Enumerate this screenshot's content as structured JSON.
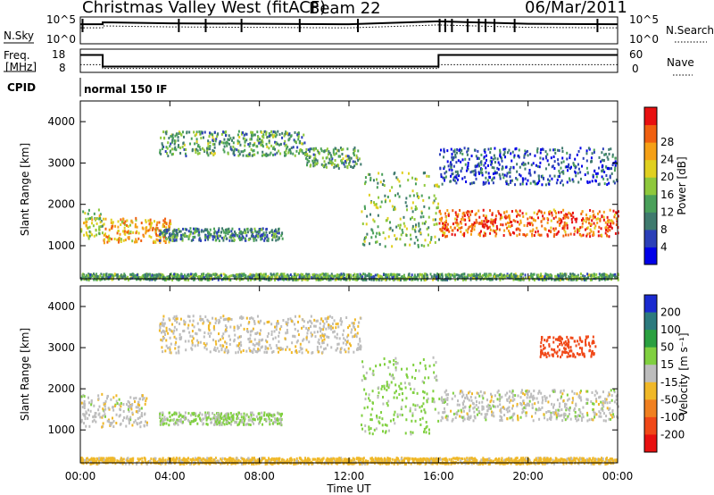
{
  "header": {
    "station": "Christmas Valley West (fitACF)",
    "beam": "Beam 22",
    "date": "06/Mar/2011"
  },
  "noise_panel": {
    "left_label": "N.Sky",
    "right_label": "N.Search",
    "left_ticks": [
      "10^5",
      "10^0"
    ],
    "right_ticks": [
      "10^5",
      "10^0"
    ]
  },
  "freq_panel": {
    "left_label_top": "Freq.",
    "left_label_bottom": "[MHz]",
    "right_label": "Nave",
    "left_ticks": [
      "18",
      "8"
    ],
    "right_ticks": [
      "60",
      "0"
    ]
  },
  "cpid_panel": {
    "label": "CPID",
    "mode": "normal 150 IF"
  },
  "axes": {
    "ylabel": "Slant Range [km]",
    "xlabel": "Time UT",
    "yticks": [
      "1000",
      "2000",
      "3000",
      "4000"
    ],
    "xticks": [
      "00:00",
      "04:00",
      "08:00",
      "12:00",
      "16:00",
      "20:00",
      "00:00"
    ]
  },
  "power_colorbar": {
    "title": "Power [dB]",
    "ticks": [
      "4",
      "8",
      "12",
      "16",
      "20",
      "24",
      "28"
    ],
    "colors": [
      "#0000e8",
      "#2b3fb8",
      "#3f7a6e",
      "#4aa05a",
      "#8ec83c",
      "#e0d020",
      "#f5a016",
      "#f06010",
      "#e81010"
    ]
  },
  "velocity_colorbar": {
    "title": "Velocity [m s⁻¹]",
    "ticks": [
      "200",
      "100",
      "50",
      "15",
      "-15",
      "-50",
      "-100",
      "-200"
    ],
    "colors": [
      "#1a2ad0",
      "#2c7a7e",
      "#2aa040",
      "#80d040",
      "#bdbdbd",
      "#f0b828",
      "#f08020",
      "#f04818",
      "#e81010"
    ]
  },
  "chart_data": [
    {
      "type": "line",
      "title": "N.Sky / N.Search",
      "x_range": [
        0,
        24
      ],
      "series": [
        {
          "x": [
            0,
            1,
            1,
            4,
            8,
            12,
            16,
            20,
            24
          ],
          "y": [
            4.0,
            4.0,
            4.4,
            4.2,
            4.1,
            4.0,
            4.6,
            4.1,
            4.0
          ]
        }
      ]
    },
    {
      "type": "line",
      "title": "Freq. / Nave",
      "x_range": [
        0,
        24
      ],
      "series": [
        {
          "x": [
            0,
            1,
            1,
            16,
            16,
            24
          ],
          "y": [
            15.5,
            15.5,
            10.5,
            10.5,
            15.5,
            15.5
          ]
        },
        {
          "x": [
            0,
            1,
            1,
            16,
            16,
            24
          ],
          "y": [
            20,
            20,
            10,
            10,
            20,
            20
          ]
        }
      ]
    },
    {
      "type": "heatmap",
      "quantity": "Power [dB]",
      "x_range": [
        0,
        24
      ],
      "y_range": [
        200,
        4500
      ],
      "echo_regions": [
        {
          "t": [
            0.0,
            1.0
          ],
          "r": [
            1200,
            1900
          ],
          "level": 16
        },
        {
          "t": [
            1.0,
            4.0
          ],
          "r": [
            1100,
            1700
          ],
          "level": 22
        },
        {
          "t": [
            3.5,
            9.0
          ],
          "r": [
            1150,
            1450
          ],
          "level": 10
        },
        {
          "t": [
            3.5,
            10.0
          ],
          "r": [
            3200,
            3800
          ],
          "level": 12
        },
        {
          "t": [
            10.0,
            12.5
          ],
          "r": [
            2900,
            3400
          ],
          "level": 12
        },
        {
          "t": [
            12.5,
            16.0
          ],
          "r": [
            1000,
            2800
          ],
          "level": 14
        },
        {
          "t": [
            16.0,
            24.0
          ],
          "r": [
            1250,
            1900
          ],
          "level": 26
        },
        {
          "t": [
            16.0,
            24.0
          ],
          "r": [
            2500,
            3400
          ],
          "level": 6
        },
        {
          "t": [
            0.0,
            24.0
          ],
          "r": [
            200,
            350
          ],
          "level": 12
        }
      ]
    },
    {
      "type": "heatmap",
      "quantity": "Velocity [m s⁻¹]",
      "x_range": [
        0,
        24
      ],
      "y_range": [
        200,
        4500
      ],
      "echo_regions": [
        {
          "t": [
            0.0,
            3.0
          ],
          "r": [
            1100,
            1900
          ],
          "v": 0
        },
        {
          "t": [
            3.5,
            9.0
          ],
          "r": [
            1150,
            1450
          ],
          "v": 20
        },
        {
          "t": [
            3.5,
            12.5
          ],
          "r": [
            2900,
            3800
          ],
          "v": -5
        },
        {
          "t": [
            12.5,
            16.0
          ],
          "r": [
            900,
            2800
          ],
          "v": 25
        },
        {
          "t": [
            16.0,
            24.0
          ],
          "r": [
            1250,
            2000
          ],
          "v": 0
        },
        {
          "t": [
            20.5,
            23.0
          ],
          "r": [
            2800,
            3300
          ],
          "v": -150
        },
        {
          "t": [
            0.0,
            24.0
          ],
          "r": [
            200,
            350
          ],
          "v": -30
        }
      ]
    }
  ]
}
